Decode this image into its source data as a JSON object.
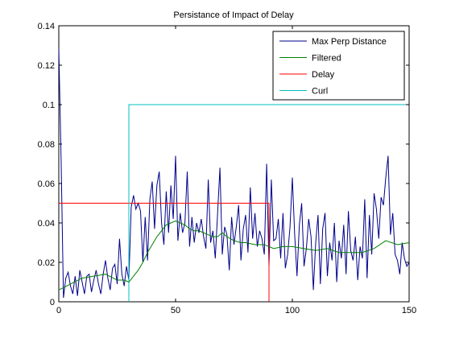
{
  "chart_data": {
    "type": "line",
    "title": "Persistance of Impact of Delay",
    "xlabel": "",
    "ylabel": "",
    "xlim": [
      0,
      150
    ],
    "ylim": [
      0,
      0.14
    ],
    "xticks": [
      "0",
      "50",
      "100",
      "150"
    ],
    "xtick_values": [
      0,
      50,
      100,
      150
    ],
    "yticks": [
      "0",
      "0.02",
      "0.04",
      "0.06",
      "0.08",
      "0.1",
      "0.12",
      "0.14"
    ],
    "ytick_values": [
      0,
      0.02,
      0.04,
      0.06,
      0.08,
      0.1,
      0.12,
      0.14
    ],
    "grid": false,
    "legend_position": "top-right",
    "series": [
      {
        "name": "Max Perp Distance",
        "color": "#00008b",
        "x": [
          0,
          1,
          2,
          3,
          4,
          5,
          6,
          7,
          8,
          9,
          10,
          11,
          12,
          13,
          14,
          15,
          16,
          17,
          18,
          19,
          20,
          21,
          22,
          23,
          24,
          25,
          26,
          27,
          28,
          29,
          30,
          31,
          32,
          33,
          34,
          35,
          36,
          37,
          38,
          39,
          40,
          41,
          42,
          43,
          44,
          45,
          46,
          47,
          48,
          49,
          50,
          51,
          52,
          53,
          54,
          55,
          56,
          57,
          58,
          59,
          60,
          61,
          62,
          63,
          64,
          65,
          66,
          67,
          68,
          69,
          70,
          71,
          72,
          73,
          74,
          75,
          76,
          77,
          78,
          79,
          80,
          81,
          82,
          83,
          84,
          85,
          86,
          87,
          88,
          89,
          90,
          91,
          92,
          93,
          94,
          95,
          96,
          97,
          98,
          99,
          100,
          101,
          102,
          103,
          104,
          105,
          106,
          107,
          108,
          109,
          110,
          111,
          112,
          113,
          114,
          115,
          116,
          117,
          118,
          119,
          120,
          121,
          122,
          123,
          124,
          125,
          126,
          127,
          128,
          129,
          130,
          131,
          132,
          133,
          134,
          135,
          136,
          137,
          138,
          139,
          140,
          141,
          142,
          143,
          144,
          145,
          146,
          147,
          148,
          149,
          150
        ],
        "y": [
          0.128,
          0.072,
          0.002,
          0.012,
          0.015,
          0.008,
          0.004,
          0.013,
          0.003,
          0.016,
          0.01,
          0.004,
          0.013,
          0.014,
          0.005,
          0.011,
          0.016,
          0.009,
          0.004,
          0.014,
          0.021,
          0.012,
          0.006,
          0.017,
          0.019,
          0.009,
          0.032,
          0.014,
          0.008,
          0.018,
          0.011,
          0.048,
          0.054,
          0.047,
          0.05,
          0.046,
          0.02,
          0.043,
          0.021,
          0.052,
          0.061,
          0.037,
          0.059,
          0.066,
          0.04,
          0.029,
          0.056,
          0.035,
          0.059,
          0.042,
          0.074,
          0.031,
          0.045,
          0.035,
          0.04,
          0.066,
          0.028,
          0.043,
          0.03,
          0.04,
          0.035,
          0.042,
          0.033,
          0.027,
          0.062,
          0.03,
          0.036,
          0.022,
          0.045,
          0.068,
          0.024,
          0.038,
          0.034,
          0.016,
          0.043,
          0.029,
          0.038,
          0.049,
          0.021,
          0.037,
          0.044,
          0.025,
          0.058,
          0.032,
          0.045,
          0.028,
          0.036,
          0.032,
          0.024,
          0.07,
          0.018,
          0.062,
          0.031,
          0.032,
          0.042,
          0.022,
          0.045,
          0.017,
          0.024,
          0.038,
          0.063,
          0.034,
          0.013,
          0.039,
          0.05,
          0.018,
          0.027,
          0.042,
          0.033,
          0.006,
          0.03,
          0.044,
          0.009,
          0.037,
          0.045,
          0.013,
          0.03,
          0.021,
          0.04,
          0.01,
          0.031,
          0.022,
          0.039,
          0.014,
          0.046,
          0.026,
          0.021,
          0.033,
          0.011,
          0.028,
          0.022,
          0.052,
          0.012,
          0.044,
          0.024,
          0.055,
          0.047,
          0.032,
          0.053,
          0.049,
          0.063,
          0.074,
          0.034,
          0.045,
          0.024,
          0.021,
          0.014,
          0.03,
          0.022,
          0.018,
          0.02
        ]
      },
      {
        "name": "Filtered",
        "color": "#008000",
        "x": [
          0,
          5,
          10,
          15,
          20,
          25,
          28,
          30,
          32,
          34,
          36,
          38,
          40,
          42,
          44,
          46,
          48,
          50,
          52,
          54,
          56,
          58,
          60,
          62,
          64,
          66,
          68,
          70,
          72,
          75,
          78,
          80,
          84,
          88,
          92,
          96,
          100,
          105,
          110,
          115,
          120,
          125,
          130,
          135,
          140,
          145,
          150
        ],
        "y": [
          0.006,
          0.009,
          0.012,
          0.013,
          0.014,
          0.011,
          0.011,
          0.01,
          0.013,
          0.016,
          0.02,
          0.025,
          0.029,
          0.033,
          0.036,
          0.039,
          0.04,
          0.041,
          0.04,
          0.039,
          0.037,
          0.036,
          0.036,
          0.035,
          0.034,
          0.033,
          0.033,
          0.035,
          0.033,
          0.031,
          0.03,
          0.03,
          0.029,
          0.029,
          0.027,
          0.028,
          0.028,
          0.027,
          0.026,
          0.027,
          0.025,
          0.025,
          0.025,
          0.027,
          0.031,
          0.029,
          0.03
        ]
      },
      {
        "name": "Delay",
        "color": "#ff0000",
        "x": [
          0,
          90,
          90
        ],
        "y": [
          0.05,
          0.05,
          0
        ]
      },
      {
        "name": "Curl",
        "color": "#00bfbf",
        "x": [
          30,
          30,
          150
        ],
        "y": [
          0,
          0.1,
          0.1
        ]
      }
    ]
  }
}
